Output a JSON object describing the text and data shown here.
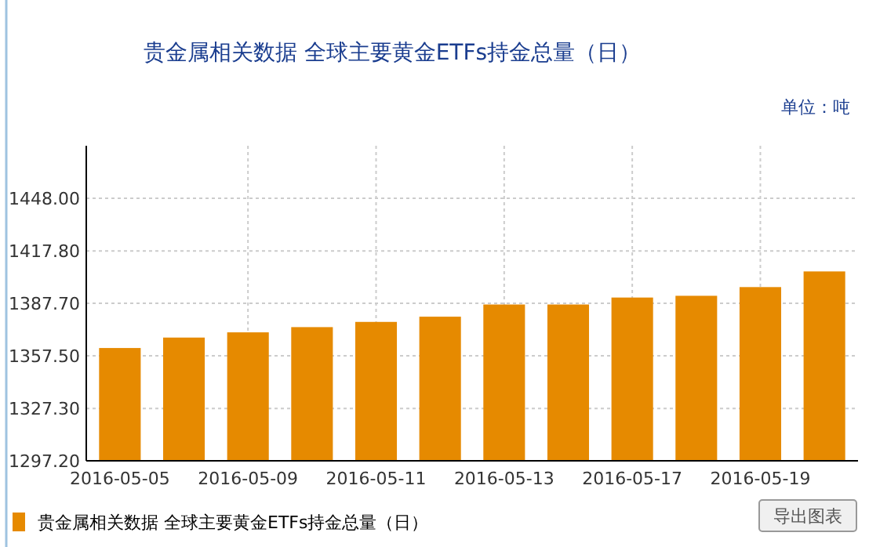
{
  "chart_data": {
    "type": "bar",
    "title": "贵金属相关数据 全球主要黄金ETFs持金总量（日）",
    "ylabel": "单位：吨",
    "categories": [
      "2016-05-05",
      null,
      "2016-05-09",
      null,
      "2016-05-11",
      null,
      "2016-05-13",
      null,
      "2016-05-17",
      null,
      "2016-05-19",
      null
    ],
    "series": [
      {
        "name": "贵金属相关数据 全球主要黄金ETFs持金总量（日）",
        "color": "#e68a00",
        "values": [
          1362,
          1368,
          1371,
          1374,
          1377,
          1380,
          1387,
          1387,
          1391,
          1392,
          1397,
          1406
        ]
      }
    ],
    "ylim": [
      1297.2,
      1478.2
    ],
    "yticks": [
      {
        "value": 1297.2,
        "label": "1297.20"
      },
      {
        "value": 1327.3,
        "label": "1327.30"
      },
      {
        "value": 1357.5,
        "label": "1357.50"
      },
      {
        "value": 1387.7,
        "label": "1387.70"
      },
      {
        "value": 1417.8,
        "label": "1417.80"
      },
      {
        "value": 1448,
        "label": "1448.00"
      }
    ],
    "grid": true,
    "legend": "bottom left",
    "annotations": [
      "导出图表"
    ]
  }
}
